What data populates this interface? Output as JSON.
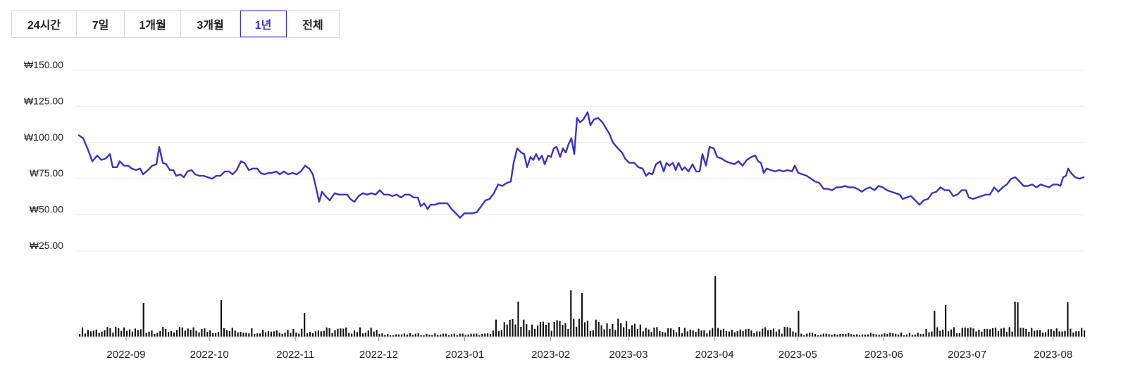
{
  "range_tabs": {
    "items": [
      "24시간",
      "7일",
      "1개월",
      "3개월",
      "1년",
      "전체"
    ],
    "active": "1년"
  },
  "colors": {
    "price_line": "#3b33c4",
    "volume_bar": "#111111",
    "grid": "#ececec",
    "active_tab": "#3b33c4"
  },
  "chart_data": {
    "type": "line",
    "currency_symbol": "₩",
    "y_ticks": [
      "₩150.00",
      "₩125.00",
      "₩100.00",
      "₩75.00",
      "₩50.00",
      "₩25.00"
    ],
    "y_tick_values": [
      150,
      125,
      100,
      75,
      50,
      25
    ],
    "ylim": [
      25,
      150
    ],
    "x_tick_labels": [
      "2022-09",
      "2022-10",
      "2022-11",
      "2022-12",
      "2023-01",
      "2023-02",
      "2023-03",
      "2023-04",
      "2023-05",
      "2023-06",
      "2023-07",
      "2023-08"
    ],
    "x_range": [
      "2022-08-15",
      "2023-08-12"
    ],
    "grid": true,
    "series": [
      {
        "kind": "price",
        "points": [
          [
            "2022-08-15",
            105
          ],
          [
            "2022-08-18",
            103
          ],
          [
            "2022-08-22",
            95
          ],
          [
            "2022-08-25",
            87
          ],
          [
            "2022-08-29",
            91
          ],
          [
            "2022-09-01",
            88
          ],
          [
            "2022-09-05",
            92
          ],
          [
            "2022-09-08",
            83
          ],
          [
            "2022-09-12",
            87
          ],
          [
            "2022-09-15",
            84
          ],
          [
            "2022-09-19",
            82
          ],
          [
            "2022-09-22",
            80
          ],
          [
            "2022-09-26",
            82
          ],
          [
            "2022-09-29",
            79
          ],
          [
            "2022-10-03",
            84
          ],
          [
            "2022-10-05",
            85
          ],
          [
            "2022-10-07",
            97
          ],
          [
            "2022-10-09",
            86
          ],
          [
            "2022-10-12",
            81
          ],
          [
            "2022-10-15",
            80
          ],
          [
            "2022-10-18",
            77
          ],
          [
            "2022-10-21",
            79
          ],
          [
            "2022-10-24",
            76
          ],
          [
            "2022-10-27",
            81
          ],
          [
            "2022-10-30",
            78
          ],
          [
            "2022-11-02",
            77
          ],
          [
            "2022-11-06",
            76
          ],
          [
            "2022-11-10",
            77
          ],
          [
            "2022-11-14",
            79
          ],
          [
            "2022-11-17",
            80
          ],
          [
            "2022-11-20",
            87
          ],
          [
            "2022-11-23",
            84
          ],
          [
            "2022-11-26",
            80
          ],
          [
            "2022-11-30",
            82
          ],
          [
            "2022-12-03",
            79
          ],
          [
            "2022-12-07",
            79
          ],
          [
            "2022-12-11",
            80
          ],
          [
            "2022-12-15",
            79
          ],
          [
            "2022-12-19",
            81
          ],
          [
            "2022-12-23",
            78
          ],
          [
            "2022-12-27",
            80
          ],
          [
            "2022-10-30",
            80
          ],
          [
            "2022-11-01",
            84
          ],
          [
            "2022-11-03",
            81
          ],
          [
            "2022-11-05",
            77
          ]
        ]
      }
    ]
  }
}
